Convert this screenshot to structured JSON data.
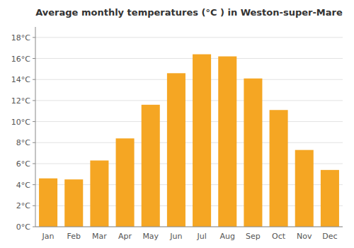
{
  "chart_data": {
    "type": "bar",
    "title": "Average monthly temperatures (°C ) in Weston-super-Mare",
    "categories": [
      "Jan",
      "Feb",
      "Mar",
      "Apr",
      "May",
      "Jun",
      "Jul",
      "Aug",
      "Sep",
      "Oct",
      "Nov",
      "Dec"
    ],
    "values": [
      4.6,
      4.5,
      6.3,
      8.4,
      11.6,
      14.6,
      16.4,
      16.2,
      14.1,
      11.1,
      7.3,
      5.4
    ],
    "color": "#F5A623",
    "ylim": [
      0,
      19
    ],
    "yticks": [
      {
        "value": 0,
        "label": "0°C"
      },
      {
        "value": 2,
        "label": "2°C"
      },
      {
        "value": 4,
        "label": "4°C"
      },
      {
        "value": 6,
        "label": "6°C"
      },
      {
        "value": 8,
        "label": "8°C"
      },
      {
        "value": 10,
        "label": "10°C"
      },
      {
        "value": 12,
        "label": "12°C"
      },
      {
        "value": 14,
        "label": "14°C"
      },
      {
        "value": 16,
        "label": "16°C"
      },
      {
        "value": 18,
        "label": "18°C"
      }
    ],
    "grid": true
  }
}
